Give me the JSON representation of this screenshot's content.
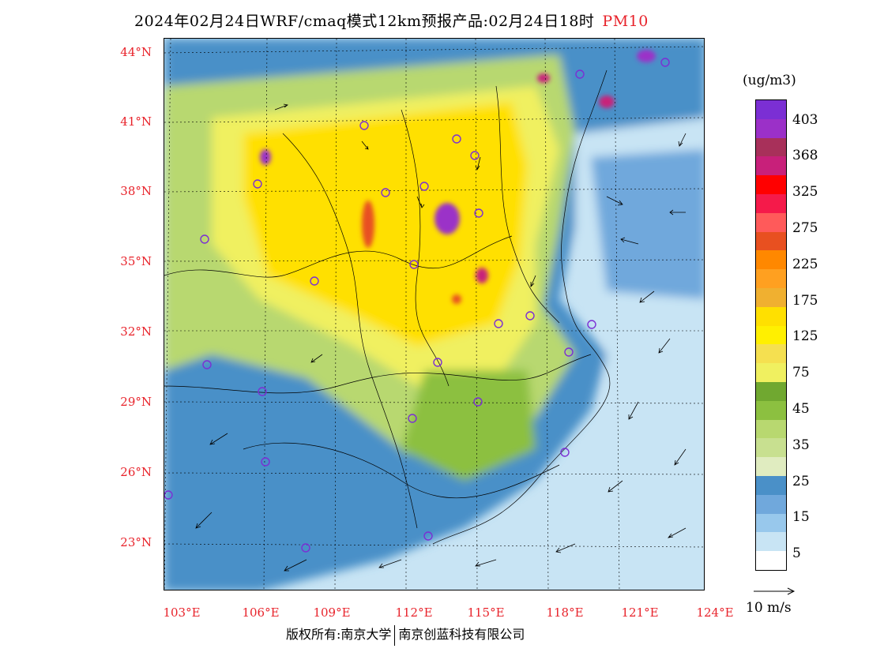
{
  "title": {
    "main": "2024年02月24日WRF/cmaq模式12km预报产品:02月24日18时",
    "variable": "PM10",
    "variable_color": "#e8232b"
  },
  "axes": {
    "lat_labels": [
      "44°N",
      "41°N",
      "38°N",
      "35°N",
      "32°N",
      "29°N",
      "26°N",
      "23°N"
    ],
    "lon_labels": [
      "103°E",
      "106°E",
      "109°E",
      "112°E",
      "115°E",
      "118°E",
      "121°E",
      "124°E"
    ],
    "label_color": "#e8232b"
  },
  "colorbar": {
    "unit": "(ug/m3)",
    "labels": [
      "403",
      "368",
      "325",
      "275",
      "225",
      "175",
      "125",
      "75",
      "45",
      "35",
      "25",
      "15",
      "5"
    ],
    "colors": [
      "#7b2fd4",
      "#9b30c8",
      "#a8305a",
      "#c8207a",
      "#ff0000",
      "#f51a4a",
      "#ff5a5a",
      "#e85020",
      "#ff8800",
      "#ffa020",
      "#f0b030",
      "#ffe000",
      "#fff000",
      "#f5e050",
      "#f0f060",
      "#70a830",
      "#8cc040",
      "#b8d870",
      "#c8e090",
      "#e0ecc0",
      "#4a90c8",
      "#70a8dc",
      "#98c8ec",
      "#c8e4f4",
      "#ffffff"
    ]
  },
  "vector_reference": "10 m/s",
  "footer": {
    "left": "版权所有:南京大学",
    "right": "南京创蓝科技有限公司"
  }
}
